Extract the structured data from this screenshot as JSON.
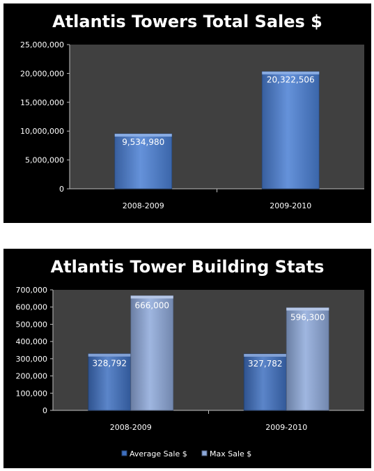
{
  "chart_data": [
    {
      "type": "bar",
      "title": "Atlantis Towers Total Sales $",
      "categories": [
        "2008-2009",
        "2009-2010"
      ],
      "series": [
        {
          "values": [
            9534980,
            20322506
          ],
          "data_labels": [
            "9,534,980",
            "20,322,506"
          ],
          "color": "#4a7fd4"
        }
      ],
      "ylim": [
        0,
        25000000
      ],
      "yticks": [
        0,
        5000000,
        10000000,
        15000000,
        20000000,
        25000000
      ],
      "ytick_labels": [
        "0",
        "5,000,000",
        "10,000,000",
        "15,000,000",
        "20,000,000",
        "25,000,000"
      ],
      "grid": false,
      "legend": "none",
      "background": "#000000",
      "plot_background": "#404040"
    },
    {
      "type": "bar",
      "title": "Atlantis Tower Building Stats",
      "categories": [
        "2008-2009",
        "2009-2010"
      ],
      "series": [
        {
          "name": "Average Sale $",
          "values": [
            328792,
            327782
          ],
          "data_labels": [
            "328,792",
            "327,782"
          ],
          "color": "#3e6fbf"
        },
        {
          "name": "Max Sale $",
          "values": [
            666000,
            596300
          ],
          "data_labels": [
            "666,000",
            "596,300"
          ],
          "color": "#8ea9da"
        }
      ],
      "ylim": [
        0,
        700000
      ],
      "yticks": [
        0,
        100000,
        200000,
        300000,
        400000,
        500000,
        600000,
        700000
      ],
      "ytick_labels": [
        "0",
        "100,000",
        "200,000",
        "300,000",
        "400,000",
        "500,000",
        "600,000",
        "700,000"
      ],
      "grid": false,
      "legend": "bottom",
      "background": "#000000",
      "plot_background": "#404040"
    }
  ]
}
